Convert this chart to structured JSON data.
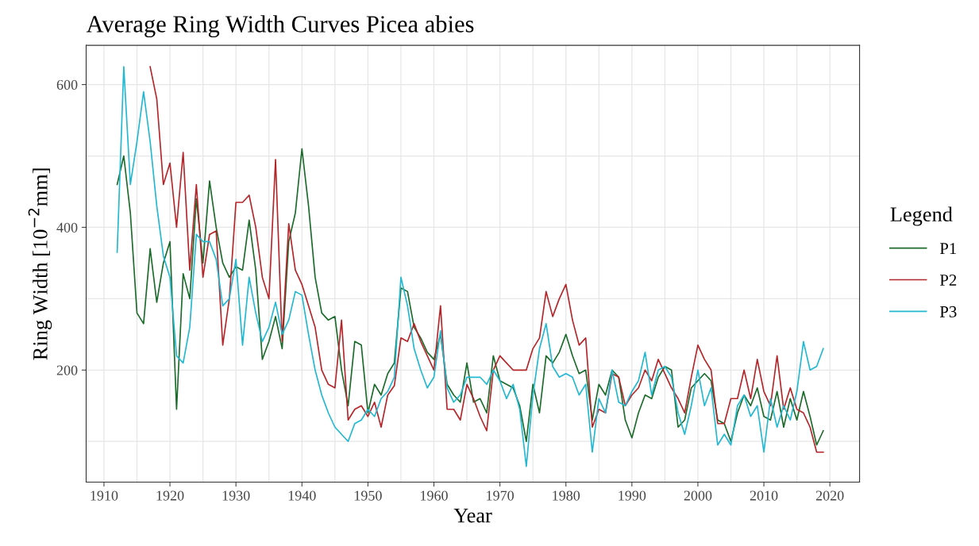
{
  "chart_data": {
    "type": "line",
    "title": "Average Ring Width Curves Picea abies",
    "xlabel": "Year",
    "ylabel": "Ring Width [10$^{−2}$mm]",
    "legend_title": "Legend",
    "legend": "right",
    "grid": true,
    "marker": "none",
    "line_style": "solid",
    "xlim": [
      1907.3,
      2024.5
    ],
    "ylim": [
      43,
      655
    ],
    "xticks": [
      1910,
      {
        "value": 1915,
        "label": null
      },
      1920,
      {
        "value": 1925,
        "label": null
      },
      1930,
      {
        "value": 1935,
        "label": null
      },
      1940,
      {
        "value": 1945,
        "label": null
      },
      1950,
      {
        "value": 1955,
        "label": null
      },
      1960,
      {
        "value": 1965,
        "label": null
      },
      1970,
      {
        "value": 1975,
        "label": null
      },
      1980,
      {
        "value": 1985,
        "label": null
      },
      1990,
      {
        "value": 1995,
        "label": null
      },
      2000,
      {
        "value": 2005,
        "label": null
      },
      2010,
      {
        "value": 2015,
        "label": null
      },
      2020
    ],
    "yticks": [
      {
        "value": 100,
        "label": null
      },
      200,
      {
        "value": 300,
        "label": null
      },
      400,
      {
        "value": 500,
        "label": null
      },
      600
    ],
    "x": [
      1912,
      1913,
      1914,
      1915,
      1916,
      1917,
      1918,
      1919,
      1920,
      1921,
      1922,
      1923,
      1924,
      1925,
      1926,
      1927,
      1928,
      1929,
      1930,
      1931,
      1932,
      1933,
      1934,
      1935,
      1936,
      1937,
      1938,
      1939,
      1940,
      1941,
      1942,
      1943,
      1944,
      1945,
      1946,
      1947,
      1948,
      1949,
      1950,
      1951,
      1952,
      1953,
      1954,
      1955,
      1956,
      1957,
      1958,
      1959,
      1960,
      1961,
      1962,
      1963,
      1964,
      1965,
      1966,
      1967,
      1968,
      1969,
      1970,
      1971,
      1972,
      1973,
      1974,
      1975,
      1976,
      1977,
      1978,
      1979,
      1980,
      1981,
      1982,
      1983,
      1984,
      1985,
      1986,
      1987,
      1988,
      1989,
      1990,
      1991,
      1992,
      1993,
      1994,
      1995,
      1996,
      1997,
      1998,
      1999,
      2000,
      2001,
      2002,
      2003,
      2004,
      2005,
      2006,
      2007,
      2008,
      2009,
      2010,
      2011,
      2012,
      2013,
      2014,
      2015,
      2016,
      2017,
      2018,
      2019
    ],
    "series": [
      {
        "name": "P1",
        "color": "#1b6b2b",
        "values": [
          460,
          500,
          420,
          280,
          265,
          370,
          295,
          350,
          380,
          145,
          335,
          300,
          440,
          350,
          465,
          400,
          350,
          330,
          345,
          340,
          410,
          340,
          215,
          240,
          275,
          230,
          380,
          420,
          510,
          430,
          330,
          280,
          270,
          275,
          200,
          150,
          240,
          235,
          140,
          180,
          165,
          195,
          210,
          315,
          310,
          260,
          245,
          225,
          215,
          250,
          180,
          165,
          155,
          210,
          155,
          160,
          140,
          220,
          185,
          180,
          175,
          150,
          100,
          180,
          140,
          220,
          210,
          225,
          250,
          220,
          195,
          200,
          130,
          180,
          165,
          200,
          190,
          130,
          105,
          140,
          165,
          160,
          190,
          205,
          200,
          120,
          130,
          175,
          185,
          195,
          185,
          130,
          125,
          100,
          140,
          165,
          150,
          175,
          135,
          130,
          170,
          120,
          160,
          130,
          170,
          135,
          95,
          115
        ]
      },
      {
        "name": "P2",
        "color": "#b5262a",
        "values": [
          null,
          null,
          null,
          null,
          null,
          625,
          580,
          460,
          490,
          400,
          505,
          340,
          460,
          330,
          390,
          395,
          235,
          300,
          435,
          435,
          445,
          400,
          330,
          300,
          495,
          240,
          405,
          340,
          320,
          290,
          260,
          200,
          180,
          175,
          270,
          130,
          145,
          150,
          135,
          155,
          120,
          165,
          178,
          245,
          240,
          265,
          240,
          220,
          200,
          290,
          145,
          145,
          130,
          180,
          160,
          135,
          115,
          200,
          220,
          210,
          200,
          200,
          200,
          230,
          245,
          310,
          275,
          300,
          320,
          270,
          235,
          245,
          120,
          145,
          140,
          195,
          190,
          150,
          165,
          175,
          200,
          185,
          215,
          195,
          175,
          160,
          140,
          190,
          235,
          215,
          200,
          125,
          125,
          160,
          160,
          200,
          160,
          215,
          170,
          150,
          220,
          145,
          175,
          145,
          140,
          120,
          85,
          85
        ]
      },
      {
        "name": "P3",
        "color": "#22b8d2",
        "values": [
          365,
          625,
          460,
          520,
          590,
          520,
          430,
          360,
          330,
          220,
          210,
          260,
          390,
          380,
          380,
          355,
          290,
          300,
          355,
          235,
          330,
          280,
          240,
          260,
          295,
          250,
          270,
          310,
          305,
          250,
          200,
          165,
          140,
          120,
          110,
          100,
          125,
          130,
          145,
          135,
          160,
          170,
          190,
          330,
          290,
          230,
          200,
          175,
          190,
          255,
          175,
          155,
          165,
          190,
          190,
          190,
          180,
          200,
          185,
          160,
          180,
          145,
          65,
          165,
          230,
          265,
          205,
          190,
          195,
          190,
          165,
          180,
          85,
          160,
          140,
          200,
          155,
          150,
          170,
          185,
          225,
          165,
          200,
          205,
          190,
          140,
          110,
          150,
          200,
          150,
          175,
          95,
          110,
          95,
          150,
          165,
          135,
          150,
          85,
          160,
          120,
          150,
          130,
          170,
          240,
          200,
          205,
          230
        ]
      }
    ]
  }
}
